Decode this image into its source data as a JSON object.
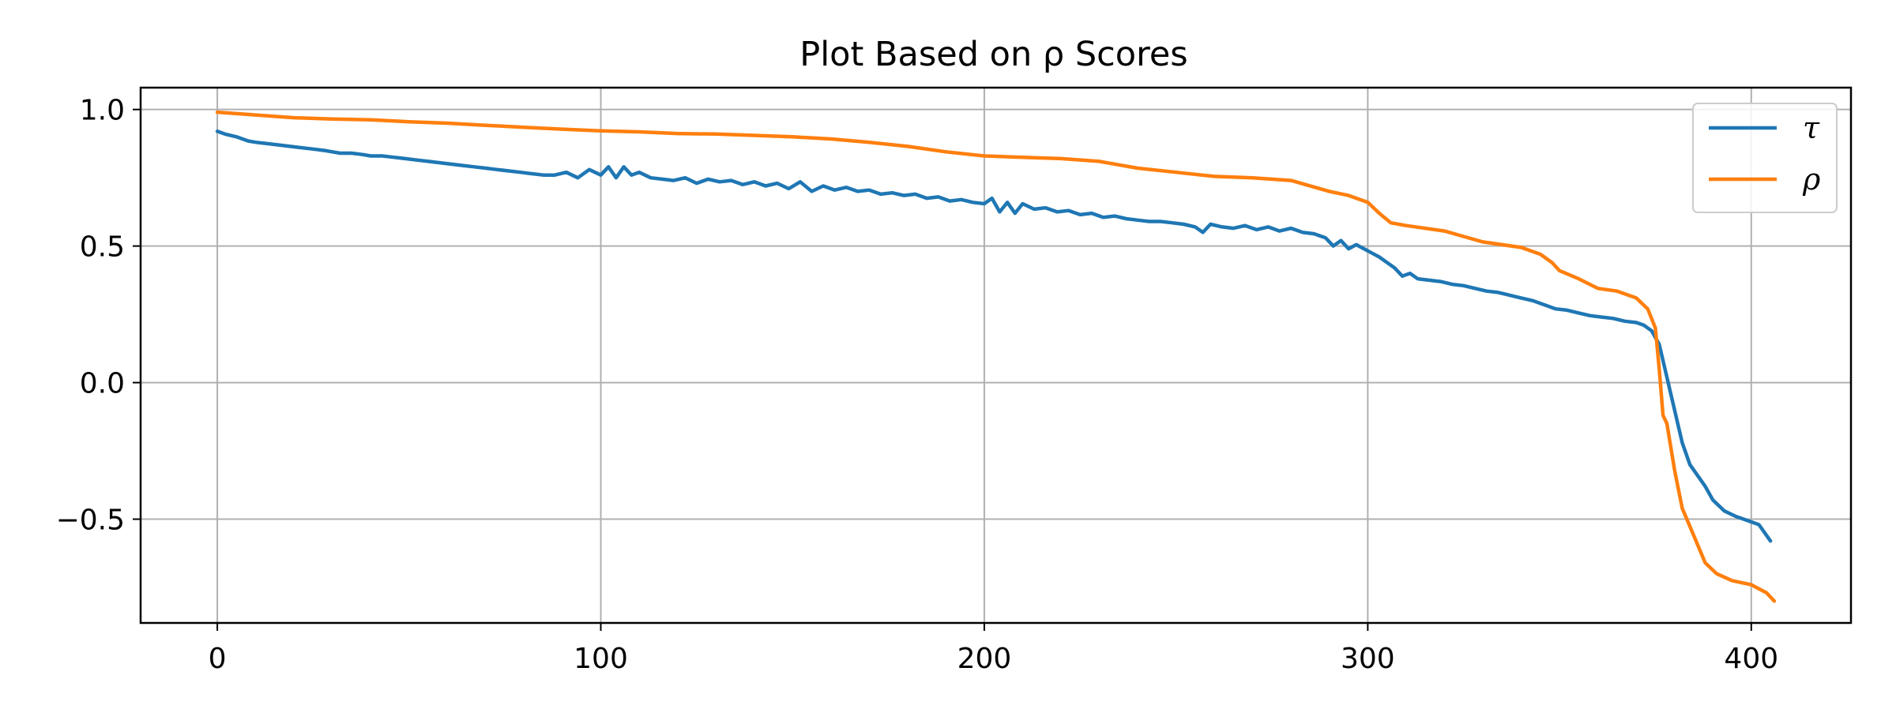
{
  "chart_data": {
    "type": "line",
    "title": "Plot Based on ρ Scores",
    "xlabel": "",
    "ylabel": "",
    "xlim": [
      -20,
      426
    ],
    "ylim": [
      -0.88,
      1.08
    ],
    "xticks": [
      0,
      100,
      200,
      300,
      400
    ],
    "xtick_labels": [
      "0",
      "100",
      "200",
      "300",
      "400"
    ],
    "yticks": [
      -0.5,
      0.0,
      0.5,
      1.0
    ],
    "ytick_labels": [
      "−0.5",
      "0.0",
      "0.5",
      "1.0"
    ],
    "grid": true,
    "legend_position": "top-right",
    "series": [
      {
        "name": "τ",
        "color": "#1f77b4",
        "points": [
          [
            0,
            0.92
          ],
          [
            2,
            0.91
          ],
          [
            5,
            0.9
          ],
          [
            8,
            0.885
          ],
          [
            10,
            0.88
          ],
          [
            13,
            0.875
          ],
          [
            16,
            0.87
          ],
          [
            19,
            0.865
          ],
          [
            22,
            0.86
          ],
          [
            25,
            0.855
          ],
          [
            28,
            0.85
          ],
          [
            30,
            0.845
          ],
          [
            32,
            0.84
          ],
          [
            35,
            0.84
          ],
          [
            38,
            0.835
          ],
          [
            40,
            0.83
          ],
          [
            43,
            0.83
          ],
          [
            46,
            0.825
          ],
          [
            49,
            0.82
          ],
          [
            52,
            0.815
          ],
          [
            55,
            0.81
          ],
          [
            58,
            0.805
          ],
          [
            61,
            0.8
          ],
          [
            64,
            0.795
          ],
          [
            67,
            0.79
          ],
          [
            70,
            0.785
          ],
          [
            73,
            0.78
          ],
          [
            76,
            0.775
          ],
          [
            79,
            0.77
          ],
          [
            82,
            0.765
          ],
          [
            85,
            0.76
          ],
          [
            88,
            0.76
          ],
          [
            91,
            0.77
          ],
          [
            94,
            0.75
          ],
          [
            97,
            0.78
          ],
          [
            100,
            0.76
          ],
          [
            102,
            0.79
          ],
          [
            104,
            0.75
          ],
          [
            106,
            0.79
          ],
          [
            108,
            0.76
          ],
          [
            110,
            0.77
          ],
          [
            113,
            0.75
          ],
          [
            116,
            0.745
          ],
          [
            119,
            0.74
          ],
          [
            122,
            0.75
          ],
          [
            125,
            0.73
          ],
          [
            128,
            0.745
          ],
          [
            131,
            0.735
          ],
          [
            134,
            0.74
          ],
          [
            137,
            0.725
          ],
          [
            140,
            0.735
          ],
          [
            143,
            0.72
          ],
          [
            146,
            0.73
          ],
          [
            149,
            0.71
          ],
          [
            152,
            0.735
          ],
          [
            155,
            0.7
          ],
          [
            158,
            0.72
          ],
          [
            161,
            0.705
          ],
          [
            164,
            0.715
          ],
          [
            167,
            0.7
          ],
          [
            170,
            0.705
          ],
          [
            173,
            0.69
          ],
          [
            176,
            0.695
          ],
          [
            179,
            0.685
          ],
          [
            182,
            0.69
          ],
          [
            185,
            0.675
          ],
          [
            188,
            0.68
          ],
          [
            191,
            0.665
          ],
          [
            194,
            0.67
          ],
          [
            197,
            0.66
          ],
          [
            200,
            0.655
          ],
          [
            202,
            0.675
          ],
          [
            204,
            0.625
          ],
          [
            206,
            0.66
          ],
          [
            208,
            0.62
          ],
          [
            210,
            0.655
          ],
          [
            213,
            0.635
          ],
          [
            216,
            0.64
          ],
          [
            219,
            0.625
          ],
          [
            222,
            0.63
          ],
          [
            225,
            0.615
          ],
          [
            228,
            0.62
          ],
          [
            231,
            0.605
          ],
          [
            234,
            0.61
          ],
          [
            237,
            0.6
          ],
          [
            240,
            0.595
          ],
          [
            243,
            0.59
          ],
          [
            246,
            0.59
          ],
          [
            249,
            0.585
          ],
          [
            252,
            0.58
          ],
          [
            255,
            0.57
          ],
          [
            257,
            0.55
          ],
          [
            259,
            0.58
          ],
          [
            262,
            0.57
          ],
          [
            265,
            0.565
          ],
          [
            268,
            0.575
          ],
          [
            271,
            0.56
          ],
          [
            274,
            0.57
          ],
          [
            277,
            0.555
          ],
          [
            280,
            0.565
          ],
          [
            283,
            0.55
          ],
          [
            286,
            0.545
          ],
          [
            289,
            0.53
          ],
          [
            291,
            0.5
          ],
          [
            293,
            0.52
          ],
          [
            295,
            0.49
          ],
          [
            297,
            0.505
          ],
          [
            299,
            0.49
          ],
          [
            301,
            0.475
          ],
          [
            303,
            0.46
          ],
          [
            305,
            0.44
          ],
          [
            307,
            0.42
          ],
          [
            309,
            0.39
          ],
          [
            311,
            0.4
          ],
          [
            313,
            0.38
          ],
          [
            316,
            0.375
          ],
          [
            319,
            0.37
          ],
          [
            322,
            0.36
          ],
          [
            325,
            0.355
          ],
          [
            328,
            0.345
          ],
          [
            331,
            0.335
          ],
          [
            334,
            0.33
          ],
          [
            337,
            0.32
          ],
          [
            340,
            0.31
          ],
          [
            343,
            0.3
          ],
          [
            346,
            0.285
          ],
          [
            349,
            0.27
          ],
          [
            352,
            0.265
          ],
          [
            355,
            0.255
          ],
          [
            358,
            0.245
          ],
          [
            361,
            0.24
          ],
          [
            364,
            0.235
          ],
          [
            367,
            0.225
          ],
          [
            370,
            0.22
          ],
          [
            372,
            0.21
          ],
          [
            374,
            0.19
          ],
          [
            376,
            0.14
          ],
          [
            378,
            0.02
          ],
          [
            380,
            -0.1
          ],
          [
            382,
            -0.22
          ],
          [
            384,
            -0.3
          ],
          [
            386,
            -0.34
          ],
          [
            388,
            -0.38
          ],
          [
            390,
            -0.43
          ],
          [
            393,
            -0.47
          ],
          [
            396,
            -0.49
          ],
          [
            399,
            -0.505
          ],
          [
            402,
            -0.52
          ],
          [
            405,
            -0.58
          ]
        ]
      },
      {
        "name": "ρ",
        "color": "#ff7f0e",
        "points": [
          [
            0,
            0.99
          ],
          [
            10,
            0.98
          ],
          [
            20,
            0.97
          ],
          [
            30,
            0.965
          ],
          [
            40,
            0.962
          ],
          [
            50,
            0.955
          ],
          [
            60,
            0.95
          ],
          [
            70,
            0.942
          ],
          [
            80,
            0.935
          ],
          [
            90,
            0.928
          ],
          [
            100,
            0.922
          ],
          [
            110,
            0.918
          ],
          [
            120,
            0.912
          ],
          [
            130,
            0.91
          ],
          [
            140,
            0.905
          ],
          [
            150,
            0.9
          ],
          [
            160,
            0.892
          ],
          [
            170,
            0.88
          ],
          [
            180,
            0.865
          ],
          [
            190,
            0.845
          ],
          [
            200,
            0.83
          ],
          [
            210,
            0.825
          ],
          [
            220,
            0.82
          ],
          [
            230,
            0.81
          ],
          [
            240,
            0.785
          ],
          [
            250,
            0.77
          ],
          [
            260,
            0.755
          ],
          [
            270,
            0.75
          ],
          [
            280,
            0.74
          ],
          [
            290,
            0.7
          ],
          [
            295,
            0.685
          ],
          [
            300,
            0.66
          ],
          [
            303,
            0.62
          ],
          [
            306,
            0.585
          ],
          [
            310,
            0.575
          ],
          [
            320,
            0.555
          ],
          [
            325,
            0.535
          ],
          [
            330,
            0.515
          ],
          [
            335,
            0.505
          ],
          [
            340,
            0.495
          ],
          [
            345,
            0.47
          ],
          [
            348,
            0.44
          ],
          [
            350,
            0.41
          ],
          [
            355,
            0.38
          ],
          [
            360,
            0.345
          ],
          [
            365,
            0.335
          ],
          [
            370,
            0.31
          ],
          [
            373,
            0.27
          ],
          [
            375,
            0.2
          ],
          [
            376,
            0.05
          ],
          [
            377,
            -0.12
          ],
          [
            378,
            -0.15
          ],
          [
            380,
            -0.32
          ],
          [
            382,
            -0.46
          ],
          [
            385,
            -0.56
          ],
          [
            388,
            -0.66
          ],
          [
            391,
            -0.7
          ],
          [
            395,
            -0.725
          ],
          [
            400,
            -0.74
          ],
          [
            404,
            -0.77
          ],
          [
            406,
            -0.8
          ]
        ]
      }
    ]
  }
}
